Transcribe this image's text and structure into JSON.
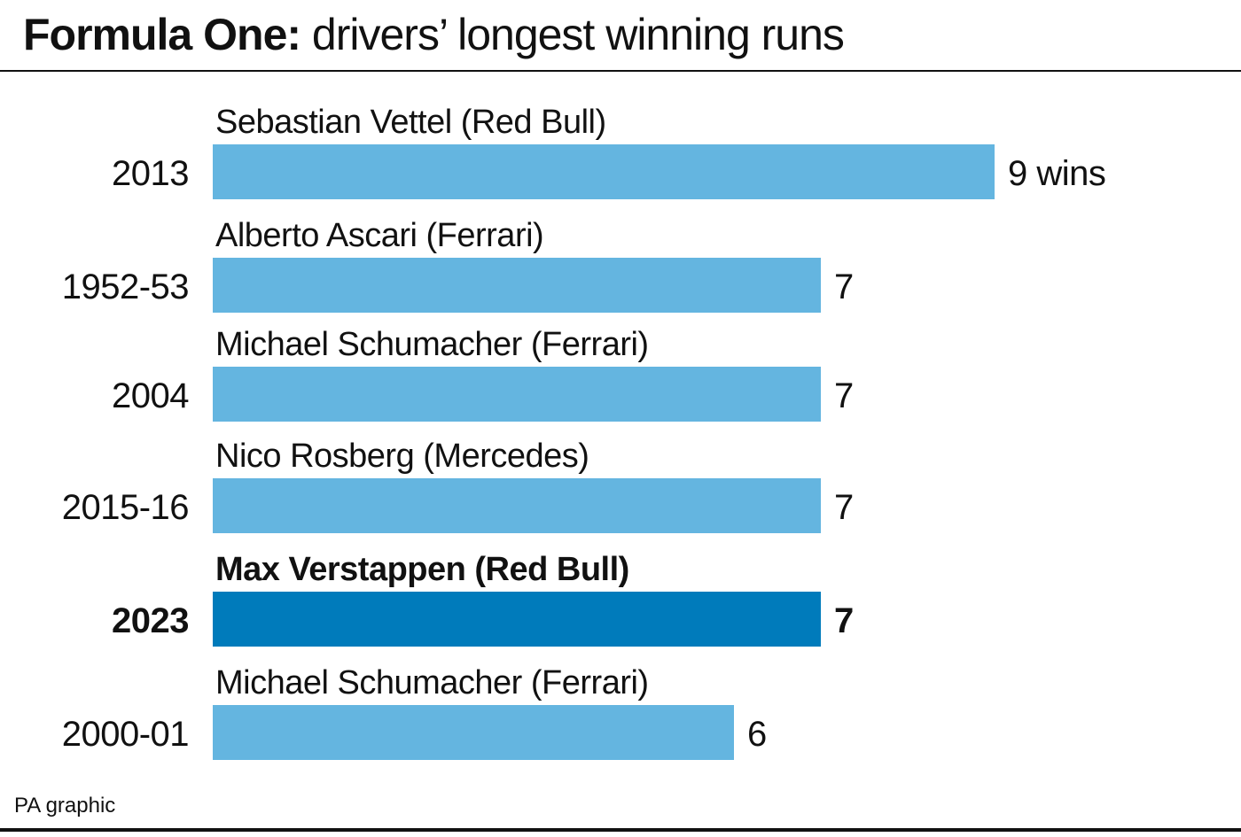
{
  "title": {
    "bold": "Formula One:",
    "rest": " drivers’ longest winning runs"
  },
  "source": "PA graphic",
  "colors": {
    "bar": "#64b5e0",
    "highlight_bar": "#007bbb",
    "text": "#111111",
    "rule": "#111111"
  },
  "chart_data": {
    "type": "bar",
    "orientation": "horizontal",
    "title": "Formula One: drivers’ longest winning runs",
    "xlabel": "",
    "ylabel": "",
    "xlim": [
      0,
      9
    ],
    "grid": false,
    "unit_label": "wins",
    "categories": [
      "2013",
      "1952-53",
      "2004",
      "2015-16",
      "2023",
      "2000-01"
    ],
    "drivers": [
      "Sebastian Vettel (Red Bull)",
      "Alberto Ascari (Ferrari)",
      "Michael Schumacher (Ferrari)",
      "Nico Rosberg (Mercedes)",
      "Max Verstappen (Red Bull)",
      "Michael Schumacher (Ferrari)"
    ],
    "values": [
      9,
      7,
      7,
      7,
      7,
      6
    ],
    "value_labels": [
      "9 wins",
      "7",
      "7",
      "7",
      "7",
      "6"
    ],
    "highlight": [
      false,
      false,
      false,
      false,
      true,
      false
    ]
  }
}
